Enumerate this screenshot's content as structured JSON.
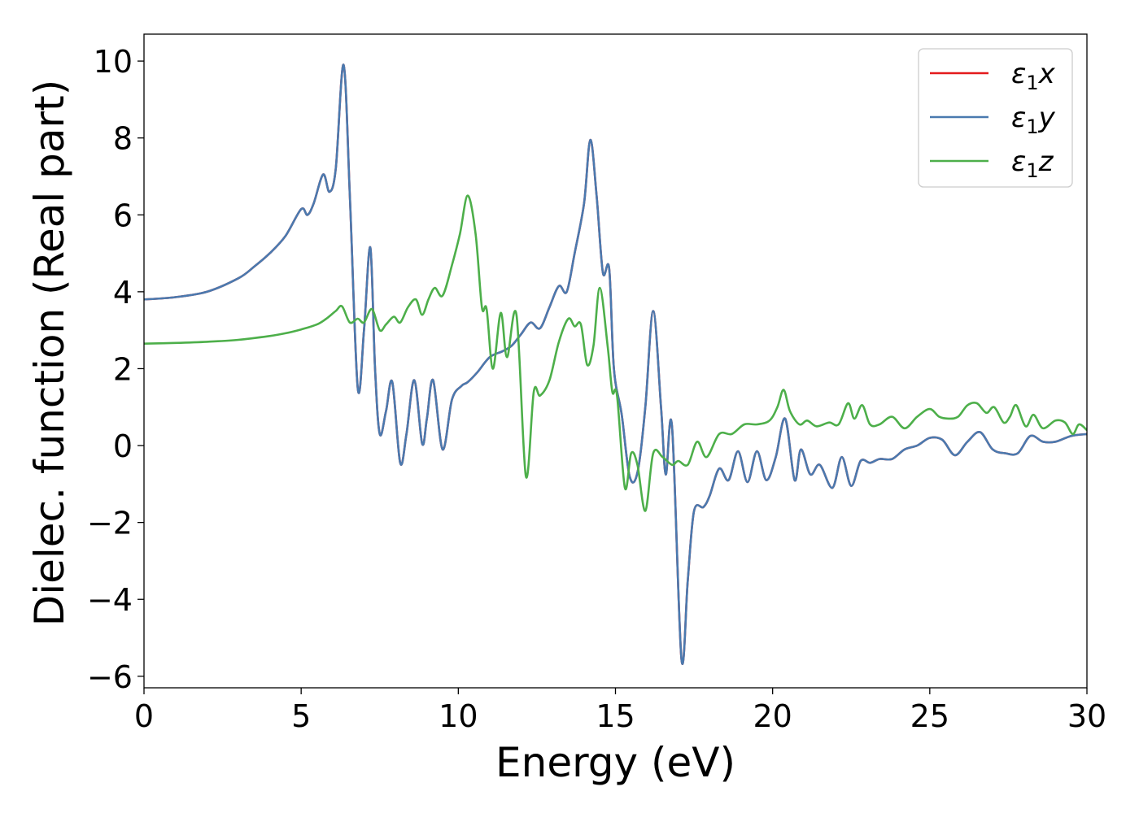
{
  "chart_data": {
    "type": "line",
    "xlabel": "Energy (eV)",
    "ylabel": "Dielec. function (Real part)",
    "xlim": [
      0,
      30
    ],
    "ylim": [
      -6.3,
      10.7
    ],
    "xticks": [
      0,
      5,
      10,
      15,
      20,
      25,
      30
    ],
    "xtick_labels": [
      "0",
      "5",
      "10",
      "15",
      "20",
      "25",
      "30"
    ],
    "yticks": [
      -6,
      -4,
      -2,
      0,
      2,
      4,
      6,
      8,
      10
    ],
    "ytick_labels": [
      "−6",
      "−4",
      "−2",
      "0",
      "2",
      "4",
      "6",
      "8",
      "10"
    ],
    "grid": false,
    "legend_position": "top-right",
    "series": [
      {
        "name": "ε1x",
        "legend_main": "ε",
        "legend_sub": "1",
        "legend_var": "x",
        "color": "#e41a1c",
        "x": [
          0,
          1,
          2,
          3,
          3.5,
          4,
          4.5,
          5,
          5.2,
          5.4,
          5.7,
          5.9,
          6.1,
          6.35,
          6.55,
          6.8,
          7.0,
          7.2,
          7.35,
          7.5,
          7.7,
          7.9,
          8.15,
          8.35,
          8.6,
          8.85,
          9.0,
          9.2,
          9.5,
          9.8,
          10.1,
          10.3,
          10.6,
          11.0,
          11.4,
          11.7,
          12.0,
          12.3,
          12.6,
          12.9,
          13.2,
          13.45,
          13.7,
          14.0,
          14.2,
          14.4,
          14.6,
          14.8,
          14.95,
          15.2,
          15.45,
          15.7,
          15.95,
          16.2,
          16.45,
          16.6,
          16.8,
          17.1,
          17.3,
          17.5,
          17.8,
          18.0,
          18.3,
          18.6,
          18.9,
          19.2,
          19.5,
          19.8,
          20.1,
          20.4,
          20.7,
          20.9,
          21.2,
          21.5,
          21.9,
          22.2,
          22.5,
          22.8,
          23.1,
          23.4,
          23.8,
          24.2,
          24.6,
          25.0,
          25.4,
          25.8,
          26.2,
          26.6,
          27.0,
          27.4,
          27.8,
          28.2,
          28.6,
          29.0,
          29.5,
          30.0
        ],
        "y": [
          3.8,
          3.86,
          4.0,
          4.35,
          4.65,
          5.0,
          5.45,
          6.15,
          6.0,
          6.3,
          7.05,
          6.6,
          7.2,
          9.9,
          6.5,
          1.5,
          3.0,
          5.15,
          2.0,
          0.3,
          0.9,
          1.65,
          -0.45,
          0.3,
          1.7,
          0.05,
          0.7,
          1.7,
          -0.1,
          1.2,
          1.55,
          1.65,
          1.9,
          2.3,
          2.45,
          2.6,
          2.9,
          3.2,
          3.05,
          3.6,
          4.15,
          4.0,
          5.0,
          6.3,
          7.95,
          6.5,
          4.5,
          4.6,
          2.0,
          0.8,
          -0.8,
          -0.7,
          1.0,
          3.5,
          1.0,
          -0.75,
          0.5,
          -5.55,
          -3.5,
          -1.7,
          -1.6,
          -1.3,
          -0.6,
          -0.9,
          -0.15,
          -0.95,
          -0.15,
          -0.9,
          -0.3,
          0.7,
          -0.9,
          -0.1,
          -0.75,
          -0.5,
          -1.1,
          -0.3,
          -1.05,
          -0.4,
          -0.45,
          -0.35,
          -0.35,
          -0.1,
          0.0,
          0.2,
          0.15,
          -0.25,
          0.1,
          0.35,
          -0.1,
          -0.2,
          -0.2,
          0.25,
          0.1,
          0.1,
          0.25,
          0.3
        ]
      },
      {
        "name": "ε1y",
        "legend_main": "ε",
        "legend_sub": "1",
        "legend_var": "y",
        "color": "#4a7aaf",
        "x": [
          0,
          1,
          2,
          3,
          3.5,
          4,
          4.5,
          5,
          5.2,
          5.4,
          5.7,
          5.9,
          6.1,
          6.35,
          6.55,
          6.8,
          7.0,
          7.2,
          7.35,
          7.5,
          7.7,
          7.9,
          8.15,
          8.35,
          8.6,
          8.85,
          9.0,
          9.2,
          9.5,
          9.8,
          10.1,
          10.3,
          10.6,
          11.0,
          11.4,
          11.7,
          12.0,
          12.3,
          12.6,
          12.9,
          13.2,
          13.45,
          13.7,
          14.0,
          14.2,
          14.4,
          14.6,
          14.8,
          14.95,
          15.2,
          15.45,
          15.7,
          15.95,
          16.2,
          16.45,
          16.6,
          16.8,
          17.1,
          17.3,
          17.5,
          17.8,
          18.0,
          18.3,
          18.6,
          18.9,
          19.2,
          19.5,
          19.8,
          20.1,
          20.4,
          20.7,
          20.9,
          21.2,
          21.5,
          21.9,
          22.2,
          22.5,
          22.8,
          23.1,
          23.4,
          23.8,
          24.2,
          24.6,
          25.0,
          25.4,
          25.8,
          26.2,
          26.6,
          27.0,
          27.4,
          27.8,
          28.2,
          28.6,
          29.0,
          29.5,
          30.0
        ],
        "y": [
          3.8,
          3.86,
          4.0,
          4.35,
          4.65,
          5.0,
          5.45,
          6.15,
          6.0,
          6.3,
          7.05,
          6.6,
          7.2,
          9.9,
          6.5,
          1.5,
          3.0,
          5.15,
          2.0,
          0.3,
          0.9,
          1.65,
          -0.45,
          0.3,
          1.7,
          0.05,
          0.7,
          1.7,
          -0.1,
          1.2,
          1.55,
          1.65,
          1.9,
          2.3,
          2.45,
          2.6,
          2.9,
          3.2,
          3.05,
          3.6,
          4.15,
          4.0,
          5.0,
          6.3,
          7.95,
          6.5,
          4.5,
          4.6,
          2.0,
          0.8,
          -0.8,
          -0.7,
          1.0,
          3.5,
          1.0,
          -0.75,
          0.5,
          -5.55,
          -3.5,
          -1.7,
          -1.6,
          -1.3,
          -0.6,
          -0.9,
          -0.15,
          -0.95,
          -0.15,
          -0.9,
          -0.3,
          0.7,
          -0.9,
          -0.1,
          -0.75,
          -0.5,
          -1.1,
          -0.3,
          -1.05,
          -0.4,
          -0.45,
          -0.35,
          -0.35,
          -0.1,
          0.0,
          0.2,
          0.15,
          -0.25,
          0.1,
          0.35,
          -0.1,
          -0.2,
          -0.2,
          0.25,
          0.1,
          0.1,
          0.25,
          0.3
        ]
      },
      {
        "name": "ε1z",
        "legend_main": "ε",
        "legend_sub": "1",
        "legend_var": "z",
        "color": "#4daf4a",
        "x": [
          0,
          1,
          2,
          3,
          4,
          4.5,
          5,
          5.5,
          5.8,
          6.1,
          6.3,
          6.55,
          6.8,
          7.0,
          7.25,
          7.5,
          7.7,
          7.95,
          8.15,
          8.4,
          8.65,
          8.85,
          9.05,
          9.25,
          9.5,
          9.8,
          10.05,
          10.3,
          10.55,
          10.75,
          10.9,
          11.1,
          11.35,
          11.55,
          11.85,
          12.15,
          12.4,
          12.6,
          12.9,
          13.2,
          13.5,
          13.7,
          13.9,
          14.1,
          14.3,
          14.5,
          14.75,
          14.9,
          15.05,
          15.3,
          15.5,
          15.7,
          15.95,
          16.2,
          16.5,
          16.8,
          17.0,
          17.3,
          17.6,
          17.9,
          18.3,
          18.7,
          19.1,
          19.5,
          19.9,
          20.15,
          20.35,
          20.55,
          20.85,
          21.1,
          21.4,
          21.8,
          22.1,
          22.4,
          22.6,
          22.85,
          23.1,
          23.4,
          23.8,
          24.2,
          24.6,
          25.0,
          25.3,
          25.6,
          25.9,
          26.2,
          26.5,
          26.8,
          27.05,
          27.35,
          27.55,
          27.75,
          28.05,
          28.3,
          28.6,
          29.0,
          29.3,
          29.55,
          29.75,
          30.0
        ],
        "y": [
          2.65,
          2.67,
          2.7,
          2.75,
          2.85,
          2.92,
          3.02,
          3.15,
          3.3,
          3.5,
          3.62,
          3.2,
          3.3,
          3.2,
          3.55,
          3.0,
          3.15,
          3.35,
          3.2,
          3.6,
          3.8,
          3.4,
          3.8,
          4.1,
          3.9,
          4.7,
          5.5,
          6.5,
          5.5,
          3.6,
          3.55,
          2.0,
          3.45,
          2.3,
          3.4,
          -0.8,
          1.4,
          1.3,
          1.7,
          2.7,
          3.3,
          3.1,
          3.15,
          2.1,
          2.6,
          4.1,
          2.6,
          1.4,
          1.3,
          -1.1,
          -0.2,
          -0.5,
          -1.7,
          -0.2,
          -0.3,
          -0.5,
          -0.4,
          -0.5,
          0.1,
          -0.3,
          0.3,
          0.3,
          0.55,
          0.55,
          0.65,
          1.0,
          1.45,
          0.9,
          0.55,
          0.65,
          0.5,
          0.6,
          0.55,
          1.1,
          0.7,
          1.05,
          0.55,
          0.55,
          0.75,
          0.45,
          0.75,
          0.95,
          0.75,
          0.7,
          0.75,
          1.05,
          1.1,
          0.85,
          1.0,
          0.6,
          0.75,
          1.05,
          0.5,
          0.8,
          0.45,
          0.65,
          0.6,
          0.3,
          0.55,
          0.4
        ]
      }
    ]
  }
}
